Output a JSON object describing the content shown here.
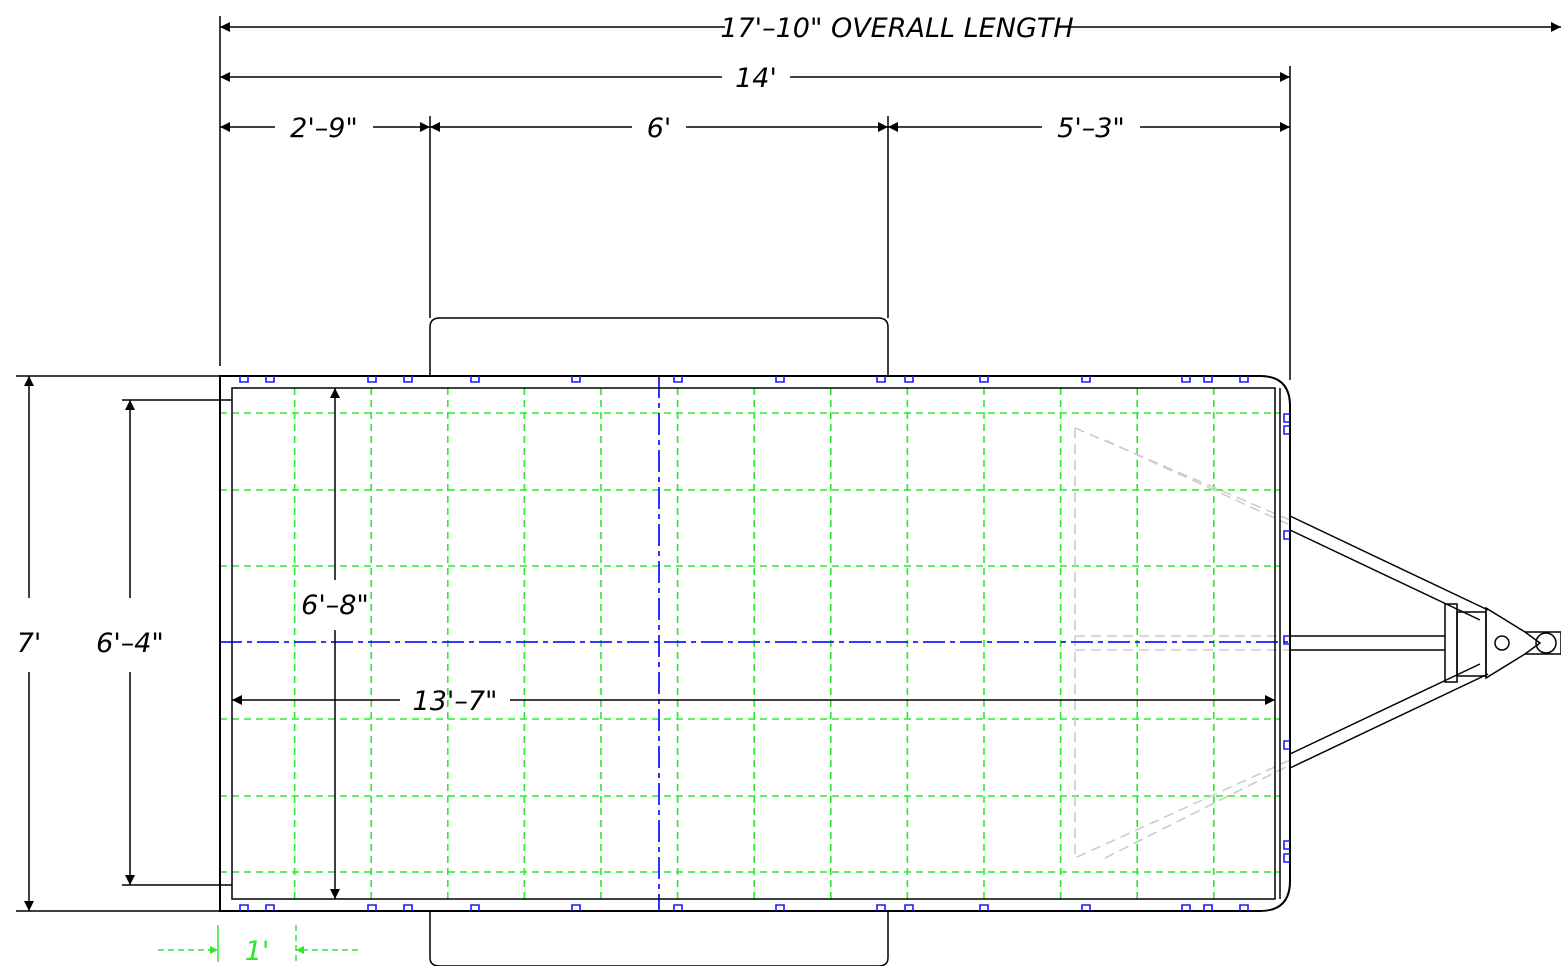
{
  "dimensions": {
    "overall_length": "17'–10\" OVERALL LENGTH",
    "bed_length": "14'",
    "front_to_fender": "2'–9\"",
    "fender_length": "6'",
    "fender_to_rear": "5'–3\"",
    "overall_width": "7'",
    "inner_width": "6'–4\"",
    "deck_width": "6'–8\"",
    "deck_length": "13'–7\"",
    "grid_spacing": "1'"
  },
  "colors": {
    "outline": "#000000",
    "grid": "#2ee82e",
    "centerline": "#1a1aff",
    "tie_down": "#1a1aff",
    "hidden_frame": "#cccccc"
  }
}
